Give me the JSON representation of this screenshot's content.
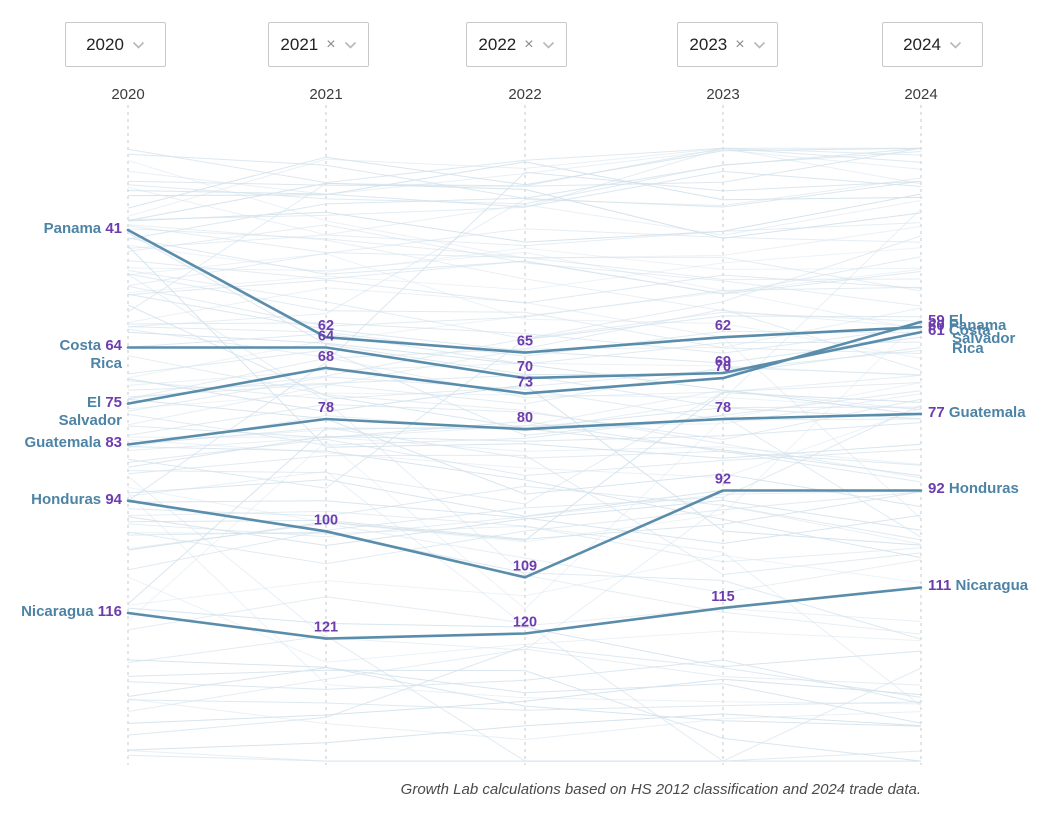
{
  "filters": {
    "items": [
      {
        "label": "2020",
        "removable": false
      },
      {
        "label": "2021",
        "removable": true
      },
      {
        "label": "2022",
        "removable": true
      },
      {
        "label": "2023",
        "removable": true
      },
      {
        "label": "2024",
        "removable": false
      }
    ]
  },
  "axis_years": [
    "2020",
    "2021",
    "2022",
    "2023",
    "2024"
  ],
  "chart_data": {
    "type": "line",
    "subtype": "bump-chart-rankings",
    "x": [
      "2020",
      "2021",
      "2022",
      "2023",
      "2024"
    ],
    "series": [
      {
        "name": "Panama",
        "values": [
          41,
          62,
          65,
          62,
          60
        ]
      },
      {
        "name": "Costa Rica",
        "values": [
          64,
          64,
          70,
          69,
          61
        ]
      },
      {
        "name": "El Salvador",
        "values": [
          75,
          68,
          73,
          70,
          59
        ]
      },
      {
        "name": "Guatemala",
        "values": [
          83,
          78,
          80,
          78,
          77
        ]
      },
      {
        "name": "Honduras",
        "values": [
          94,
          100,
          109,
          92,
          92
        ]
      },
      {
        "name": "Nicaragua",
        "values": [
          116,
          121,
          120,
          115,
          111
        ]
      }
    ],
    "value_axis": "rank (lower number = higher position)",
    "grid": "dashed vertical line per year",
    "legend_position": "labels at line ends (left and right)",
    "background_lines": {
      "count": 110,
      "rank_range": [
        25,
        145
      ]
    }
  },
  "colors": {
    "series_line": "#5a8dab",
    "background_line": "#d3e2ec",
    "value_number": "#6d3caf",
    "country_label": "#4d84a6",
    "gridline": "#c9c9c9",
    "filter_border": "#c9c9c9",
    "filter_text": "#232323"
  },
  "footer": {
    "text": "Growth Lab calculations based on HS 2012 classification and 2024 trade data."
  }
}
